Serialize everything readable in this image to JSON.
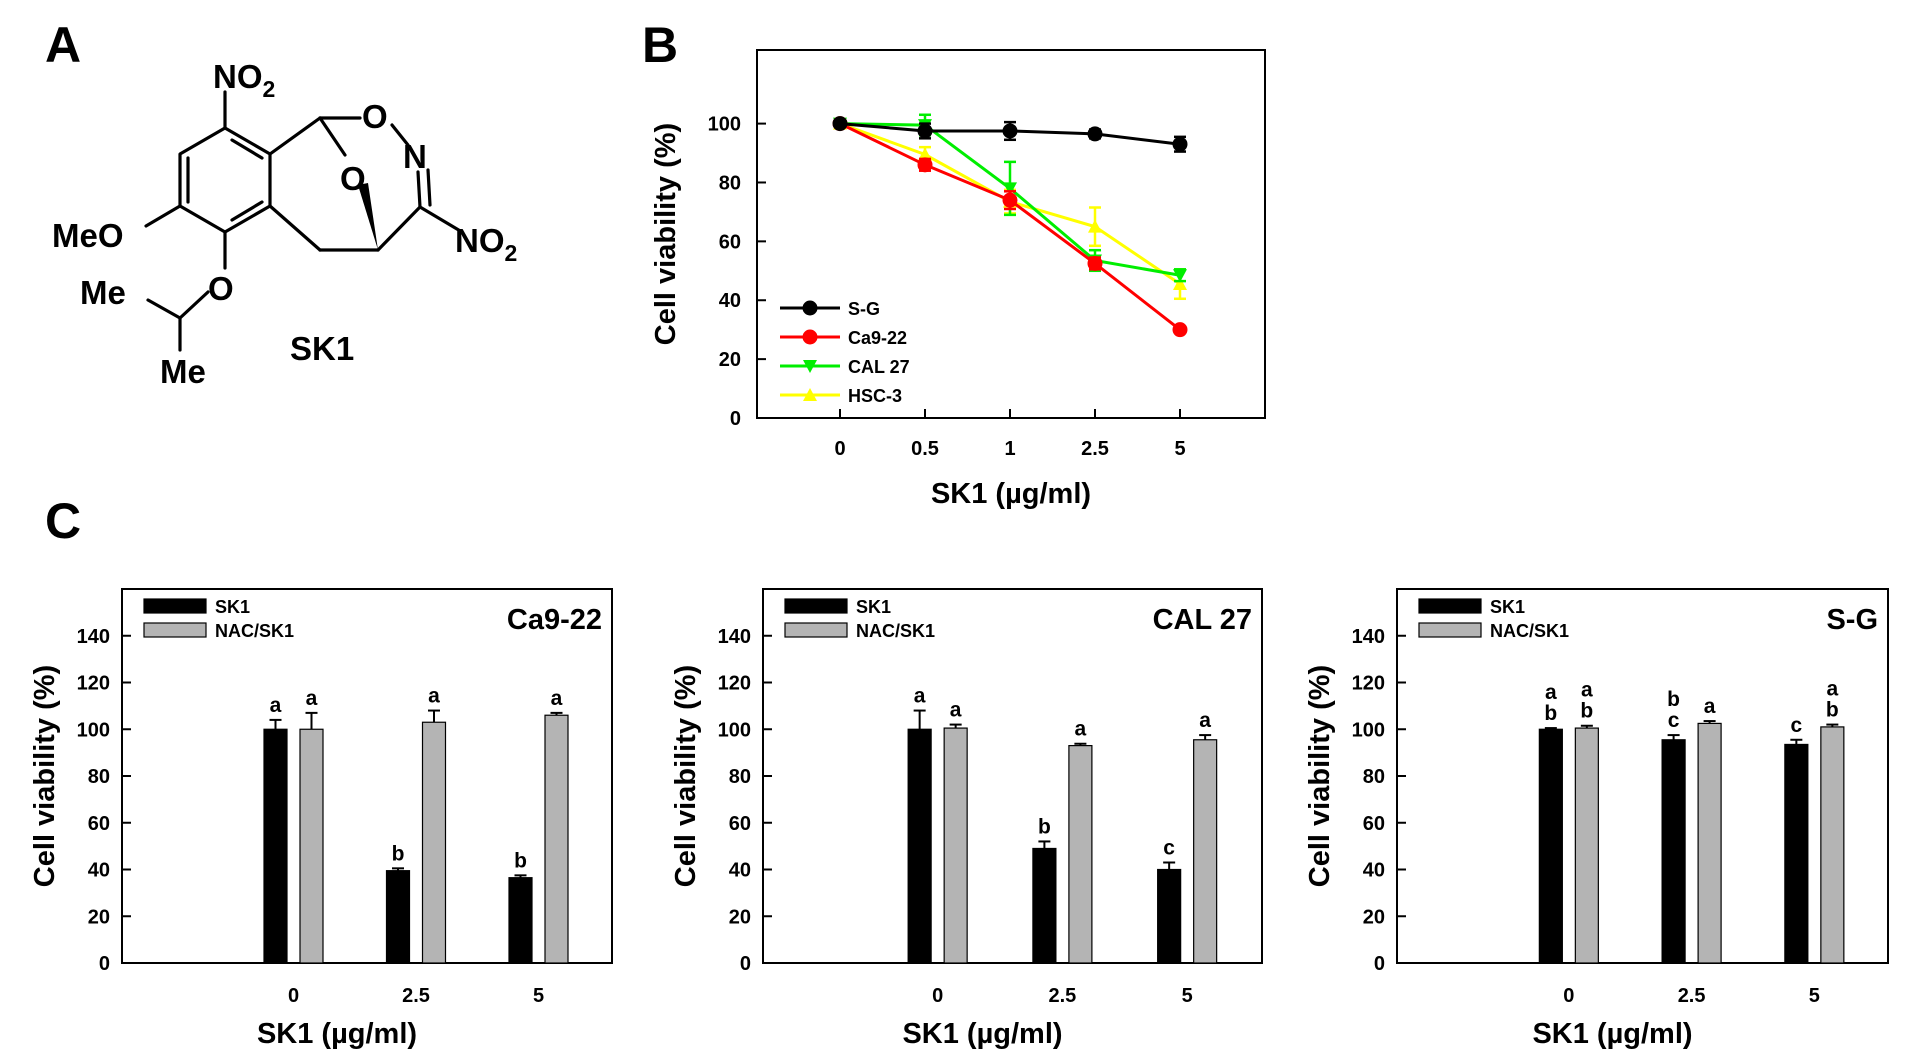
{
  "panels": {
    "A": "A",
    "B": "B",
    "C": "C"
  },
  "structure": {
    "compound_name": "SK1",
    "labels": {
      "no2_top": "NO",
      "no2_top_sub": "2",
      "no2_right": "NO",
      "no2_right_sub": "2",
      "o_top": "O",
      "n_right": "N",
      "o_bridge": "O",
      "meo": "MeO",
      "o_ether": "O",
      "me_top": "Me",
      "me_bottom": "Me"
    }
  },
  "chart_data": [
    {
      "id": "B",
      "type": "line",
      "title": "",
      "xlabel": "SK1 (µg/ml)",
      "ylabel": "Cell viability (%)",
      "categories": [
        "0",
        "0.5",
        "1",
        "2.5",
        "5"
      ],
      "ylim": [
        0,
        120
      ],
      "yticks": [
        0,
        20,
        40,
        60,
        80,
        100
      ],
      "legend_position": "bottom-left",
      "series": [
        {
          "name": "S-G",
          "color": "#000000",
          "marker": "circle",
          "values": [
            100,
            97.5,
            97.5,
            96.5,
            93
          ],
          "errors": [
            0,
            2.5,
            3,
            1.5,
            2.5
          ]
        },
        {
          "name": "Ca9-22",
          "color": "#ff0000",
          "marker": "circle",
          "values": [
            100,
            86,
            74,
            52.5,
            30
          ],
          "errors": [
            0,
            2,
            3,
            2,
            1
          ]
        },
        {
          "name": "CAL 27",
          "color": "#00ee00",
          "marker": "triangle-down",
          "values": [
            100,
            99.5,
            78,
            53.5,
            48.5
          ],
          "errors": [
            0,
            3.5,
            9,
            3.5,
            2
          ]
        },
        {
          "name": "HSC-3",
          "color": "#ffff00",
          "marker": "triangle-up",
          "values": [
            100,
            89.5,
            73.5,
            65,
            45.5
          ],
          "errors": [
            0,
            2.5,
            4,
            6.5,
            5
          ]
        }
      ]
    },
    {
      "id": "C1",
      "type": "bar",
      "title": "Ca9-22",
      "xlabel": "SK1 (µg/ml)",
      "ylabel": "Cell viability (%)",
      "categories": [
        "0",
        "2.5",
        "5"
      ],
      "ylim": [
        0,
        160
      ],
      "yticks": [
        0,
        20,
        40,
        60,
        80,
        100,
        120,
        140
      ],
      "legend_position": "top-left",
      "series": [
        {
          "name": "SK1",
          "color": "#000000",
          "values": [
            100,
            39.5,
            36.5
          ],
          "errors": [
            4,
            1,
            1
          ],
          "labels": [
            "a",
            "b",
            "b"
          ]
        },
        {
          "name": "NAC/SK1",
          "color": "#b4b4b4",
          "values": [
            100,
            103,
            106
          ],
          "errors": [
            7,
            5,
            1
          ],
          "labels": [
            "a",
            "a",
            "a"
          ]
        }
      ]
    },
    {
      "id": "C2",
      "type": "bar",
      "title": "CAL 27",
      "xlabel": "SK1 (µg/ml)",
      "ylabel": "Cell viability (%)",
      "categories": [
        "0",
        "2.5",
        "5"
      ],
      "ylim": [
        0,
        160
      ],
      "yticks": [
        0,
        20,
        40,
        60,
        80,
        100,
        120,
        140
      ],
      "legend_position": "top-left",
      "series": [
        {
          "name": "SK1",
          "color": "#000000",
          "values": [
            100,
            49,
            40
          ],
          "errors": [
            8,
            3,
            3
          ],
          "labels": [
            "a",
            "b",
            "c"
          ]
        },
        {
          "name": "NAC/SK1",
          "color": "#b4b4b4",
          "values": [
            100.5,
            93,
            95.5
          ],
          "errors": [
            1.5,
            0.8,
            2
          ],
          "labels": [
            "a",
            "a",
            "a"
          ]
        }
      ]
    },
    {
      "id": "C3",
      "type": "bar",
      "title": "S-G",
      "xlabel": "SK1 (µg/ml)",
      "ylabel": "Cell viability (%)",
      "categories": [
        "0",
        "2.5",
        "5"
      ],
      "ylim": [
        0,
        160
      ],
      "yticks": [
        0,
        20,
        40,
        60,
        80,
        100,
        120,
        140
      ],
      "legend_position": "top-left",
      "series": [
        {
          "name": "SK1",
          "color": "#000000",
          "values": [
            100,
            95.5,
            93.5
          ],
          "errors": [
            0.5,
            2,
            2
          ],
          "labels": [
            "a\nb",
            "b\nc",
            "c"
          ]
        },
        {
          "name": "NAC/SK1",
          "color": "#b4b4b4",
          "values": [
            100.5,
            102.5,
            101
          ],
          "errors": [
            1,
            1,
            1
          ],
          "labels": [
            "a\nb",
            "a",
            "a\nb"
          ]
        }
      ]
    }
  ]
}
